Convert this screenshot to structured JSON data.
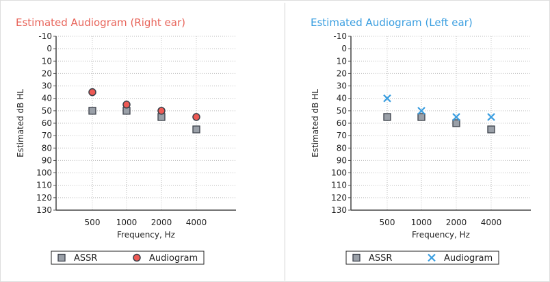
{
  "chart_data": [
    {
      "type": "scatter",
      "title": "Estimated Audiogram (Right ear)",
      "title_color": "#e8645a",
      "xlabel": "Frequency, Hz",
      "ylabel": "Estimated dB HL",
      "categories": [
        "500",
        "1000",
        "2000",
        "4000"
      ],
      "yticks": [
        "-10",
        "0",
        "10",
        "20",
        "30",
        "40",
        "50",
        "60",
        "70",
        "80",
        "90",
        "100",
        "110",
        "120",
        "130"
      ],
      "ylim": [
        -10,
        130
      ],
      "y_inverted": true,
      "grid": true,
      "series": [
        {
          "name": "ASSR",
          "marker": "square",
          "color": "#9aa0a8",
          "values": [
            50,
            50,
            55,
            65
          ]
        },
        {
          "name": "Audiogram",
          "marker": "circle",
          "color": "#ee5a55",
          "values": [
            35,
            45,
            50,
            55
          ]
        }
      ],
      "legend": "bottom"
    },
    {
      "type": "scatter",
      "title": "Estimated Audiogram (Left ear)",
      "title_color": "#3a9ee0",
      "xlabel": "Frequency, Hz",
      "ylabel": "Estimated dB HL",
      "categories": [
        "500",
        "1000",
        "2000",
        "4000"
      ],
      "yticks": [
        "-10",
        "0",
        "10",
        "20",
        "30",
        "40",
        "50",
        "60",
        "70",
        "80",
        "90",
        "100",
        "110",
        "120",
        "130"
      ],
      "ylim": [
        -10,
        130
      ],
      "y_inverted": true,
      "grid": true,
      "series": [
        {
          "name": "ASSR",
          "marker": "square",
          "color": "#9aa0a8",
          "values": [
            55,
            55,
            60,
            65
          ]
        },
        {
          "name": "Audiogram",
          "marker": "x",
          "color": "#3a9ee0",
          "values": [
            40,
            50,
            55,
            55
          ]
        }
      ],
      "legend": "bottom"
    }
  ]
}
